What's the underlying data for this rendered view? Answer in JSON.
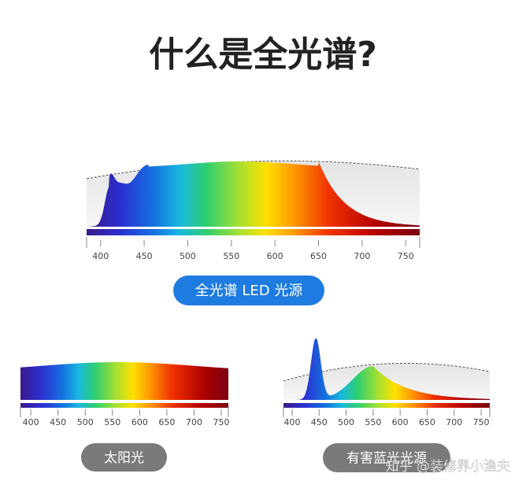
{
  "title": "什么是全光谱?",
  "panels": [
    {
      "label": "全光谱 LED 光源",
      "xlim": [
        384,
        766
      ],
      "xticks": [
        400,
        450,
        500,
        550,
        600,
        650,
        700,
        750
      ]
    },
    {
      "label": "太阳光",
      "xlim": [
        381,
        763
      ],
      "xticks": [
        400,
        450,
        500,
        550,
        600,
        650,
        700,
        750
      ]
    },
    {
      "label": "有害蓝光光源",
      "xlim": [
        384,
        766
      ],
      "xticks": [
        400,
        450,
        500,
        550,
        600,
        650,
        700,
        750
      ]
    }
  ],
  "watermark": "知乎 @装修界小渔夫"
}
